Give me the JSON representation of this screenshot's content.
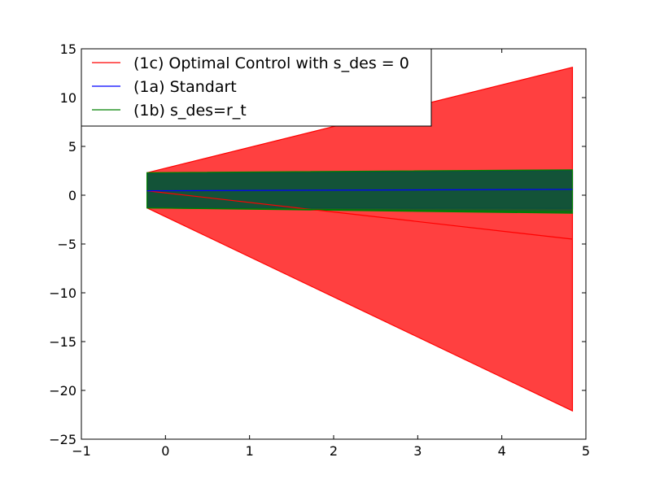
{
  "chart_data": {
    "type": "area",
    "x_ticks": [
      -1,
      0,
      1,
      2,
      3,
      4,
      5
    ],
    "y_ticks": [
      -25,
      -20,
      -15,
      -10,
      -5,
      0,
      5,
      10,
      15
    ],
    "x_tick_labels": [
      "−1",
      "0",
      "1",
      "2",
      "3",
      "4",
      "5"
    ],
    "y_tick_labels": [
      "−25",
      "−20",
      "−15",
      "−10",
      "−5",
      "0",
      "5",
      "10",
      "15"
    ],
    "xlim": [
      -1,
      5
    ],
    "ylim": [
      -25,
      15
    ],
    "grid": false,
    "legend_position": "top-left",
    "series": [
      {
        "name": "(1c) Optimal Control with s_des = 0",
        "color": "#ff0000",
        "fill_color": "#ff0000",
        "fill_opacity": 0.75,
        "x": [
          -0.22,
          4.84
        ],
        "mean": [
          0.45,
          -4.5
        ],
        "upper": [
          2.3,
          13.1
        ],
        "lower": [
          -1.3,
          -22.1
        ]
      },
      {
        "name": "(1a) Standart",
        "color": "#0000ff",
        "fill_color": "#0000ff",
        "fill_opacity": 0.6,
        "x": [
          -0.22,
          4.84
        ],
        "mean": [
          0.45,
          0.6
        ],
        "upper": [
          2.2,
          2.5
        ],
        "lower": [
          -1.25,
          -1.35
        ]
      },
      {
        "name": "(1b) s_des=r_t",
        "color": "#008000",
        "fill_color": "#0a5a2a",
        "fill_opacity": 0.9,
        "x": [
          -0.22,
          4.84
        ],
        "mean": [
          -1.3,
          -1.7
        ],
        "upper": [
          2.3,
          2.6
        ],
        "lower": [
          -1.3,
          -1.85
        ]
      }
    ]
  }
}
